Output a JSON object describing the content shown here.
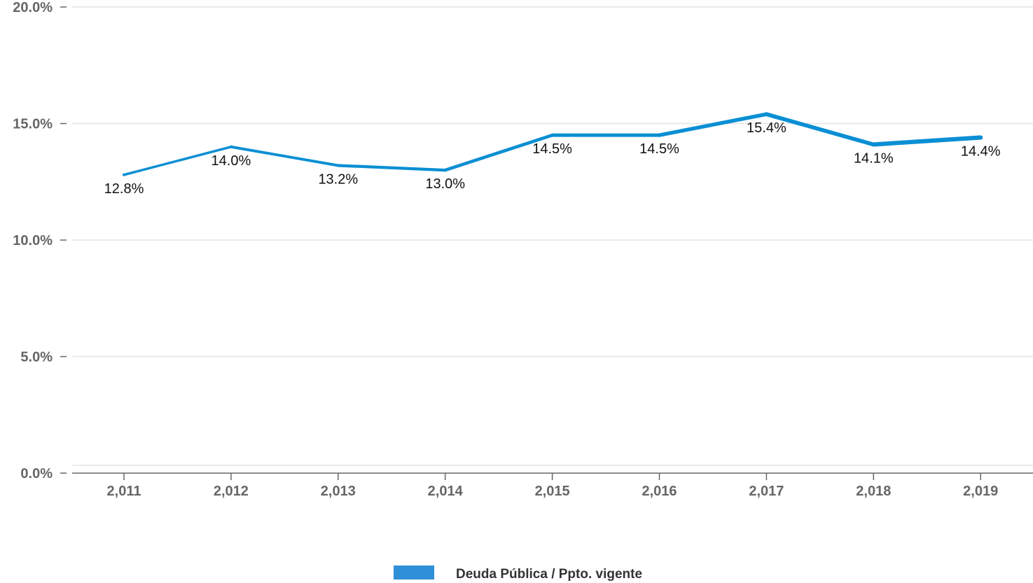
{
  "chart_data": {
    "type": "line",
    "categories": [
      "2,011",
      "2,012",
      "2,013",
      "2,014",
      "2,015",
      "2,016",
      "2,017",
      "2,018",
      "2,019"
    ],
    "series": [
      {
        "name": "Deuda Pública / Ppto. vigente",
        "values": [
          12.8,
          14.0,
          13.2,
          13.0,
          14.5,
          14.5,
          15.4,
          14.1,
          14.4
        ],
        "labels": [
          "12.8%",
          "14.0%",
          "13.2%",
          "13.0%",
          "14.5%",
          "14.5%",
          "15.4%",
          "14.1%",
          "14.4%"
        ],
        "color": "#0a8fd4"
      }
    ],
    "ylim": [
      0,
      20
    ],
    "yticks": [
      0,
      5,
      10,
      15,
      20
    ],
    "ytick_labels": [
      "0.0%",
      "5.0%",
      "10.0%",
      "15.0%",
      "20.0%"
    ],
    "grid": true,
    "legend_position": "bottom-center",
    "legend_swatch_color": "#2f8fd8",
    "gridline_color": "#e3e3e3",
    "axis_color": "#666666"
  }
}
